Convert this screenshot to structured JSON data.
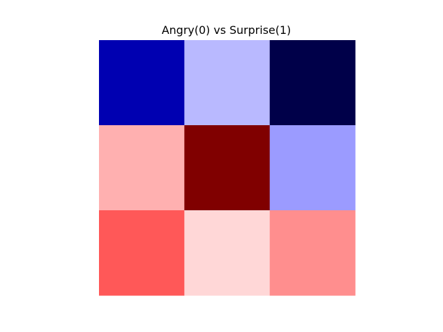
{
  "chart_data": {
    "type": "heatmap",
    "title": "Angry(0) vs Surprise(1)",
    "xlabel": "",
    "ylabel": "",
    "rows": 3,
    "cols": 3,
    "axes_visible": false,
    "colormap": "seismic",
    "color_range": [
      -1,
      1
    ],
    "values": [
      [
        -0.62,
        -0.14,
        -0.84
      ],
      [
        0.16,
        1.0,
        -0.2
      ],
      [
        0.5,
        0.08,
        0.22
      ]
    ],
    "cell_colors": [
      [
        "#0000b1",
        "#b9b9ff",
        "#000049"
      ],
      [
        "#ffb0b0",
        "#800000",
        "#9b9bff"
      ],
      [
        "#ff5858",
        "#ffd7d7",
        "#ff8e8e"
      ]
    ]
  }
}
